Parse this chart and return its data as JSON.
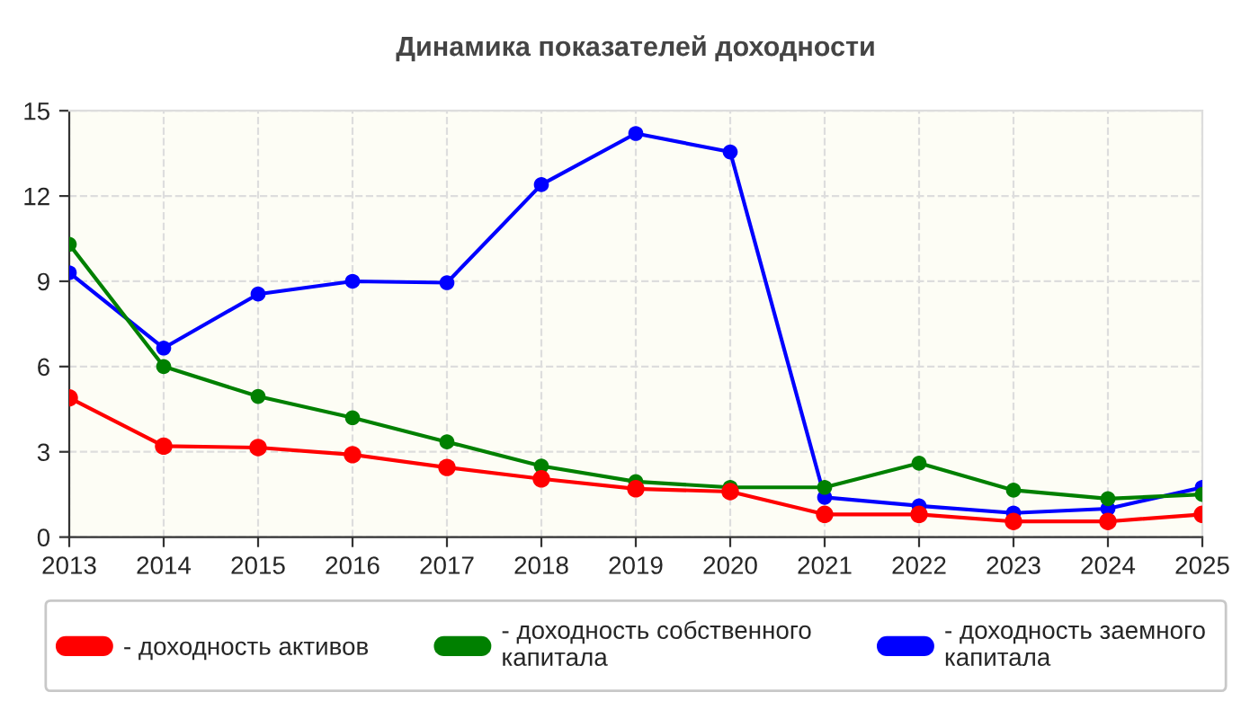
{
  "chart_data": {
    "type": "line",
    "title": "Динамика показателей доходности",
    "x": [
      2013,
      2014,
      2015,
      2016,
      2017,
      2018,
      2019,
      2020,
      2021,
      2022,
      2023,
      2024,
      2025
    ],
    "series": [
      {
        "name": "- доходность активов",
        "color": "#ff0000",
        "values": [
          4.9,
          3.2,
          3.15,
          2.9,
          2.45,
          2.05,
          1.7,
          1.6,
          0.8,
          0.8,
          0.55,
          0.55,
          0.8
        ]
      },
      {
        "name": "- доходность собственного капитала",
        "color": "#008000",
        "values": [
          10.3,
          6.0,
          4.95,
          4.2,
          3.35,
          2.5,
          1.95,
          1.75,
          1.75,
          2.6,
          1.65,
          1.35,
          1.5
        ]
      },
      {
        "name": "- доходность заемного капитала",
        "color": "#0000ff",
        "values": [
          9.3,
          6.65,
          8.55,
          9.0,
          8.95,
          12.4,
          14.2,
          13.55,
          1.4,
          1.1,
          0.85,
          1.0,
          1.75
        ]
      }
    ],
    "xlim": [
      2013,
      2025
    ],
    "xticks": [
      2013,
      2014,
      2015,
      2016,
      2017,
      2018,
      2019,
      2020,
      2021,
      2022,
      2023,
      2024,
      2025
    ],
    "ylim": [
      0,
      15
    ],
    "yticks": [
      0,
      3,
      6,
      9,
      12,
      15
    ],
    "grid": true,
    "legend": "bottom",
    "marker": "circle",
    "line_style": "solid"
  }
}
